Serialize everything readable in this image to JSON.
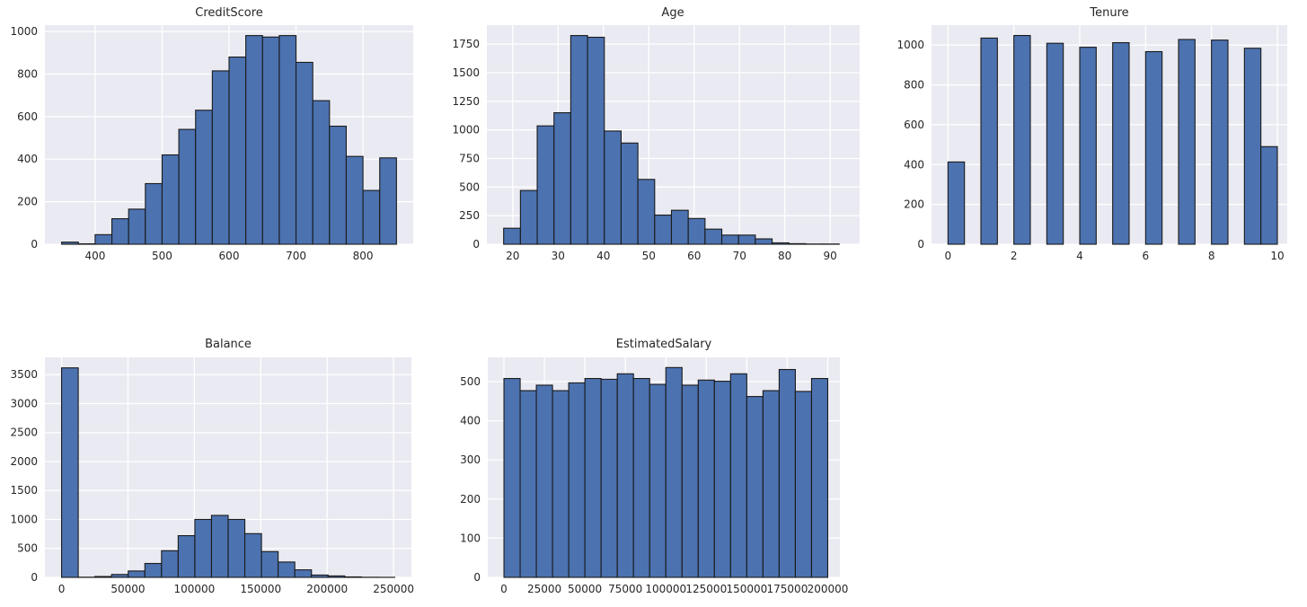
{
  "figure": {
    "background": "#ffffff",
    "plot_background": "#eaeaf2",
    "grid_color": "#ffffff",
    "bar_fill": "#4c72b0",
    "bar_edge": "#1a1a1a",
    "text_color": "#262626"
  },
  "chart_data": [
    {
      "type": "bar",
      "subtype": "histogram",
      "title": "CreditScore",
      "bin_edges": [
        350,
        375,
        400,
        425,
        450,
        475,
        500,
        525,
        550,
        575,
        600,
        625,
        650,
        675,
        700,
        725,
        750,
        775,
        800,
        825,
        850
      ],
      "counts": [
        10,
        2,
        45,
        120,
        165,
        285,
        420,
        540,
        630,
        815,
        880,
        981,
        974,
        981,
        855,
        675,
        555,
        413,
        253,
        406
      ],
      "xlim": [
        325,
        875
      ],
      "ylim": [
        0,
        1030
      ],
      "xticks": [
        400,
        500,
        600,
        700,
        800
      ],
      "yticks": [
        0,
        200,
        400,
        600,
        800,
        1000
      ],
      "grid": true,
      "legend": false
    },
    {
      "type": "bar",
      "subtype": "histogram",
      "title": "Age",
      "bin_edges": [
        18,
        21.7,
        25.4,
        29.1,
        32.8,
        36.5,
        40.2,
        43.9,
        47.6,
        51.3,
        55,
        58.7,
        62.4,
        66.1,
        69.8,
        73.5,
        77.2,
        80.9,
        84.6,
        88.3,
        92
      ],
      "counts": [
        140,
        470,
        1035,
        1150,
        1825,
        1810,
        990,
        885,
        567,
        255,
        297,
        225,
        132,
        80,
        80,
        47,
        12,
        5,
        2,
        2
      ],
      "xlim": [
        14.3,
        96.5
      ],
      "ylim": [
        0,
        1916
      ],
      "xticks": [
        20,
        30,
        40,
        50,
        60,
        70,
        80,
        90
      ],
      "yticks": [
        0,
        250,
        500,
        750,
        1000,
        1250,
        1500,
        1750
      ],
      "grid": true,
      "legend": false
    },
    {
      "type": "bar",
      "subtype": "histogram",
      "title": "Tenure",
      "bars": [
        {
          "x0": 0,
          "x1": 0.5,
          "count": 413
        },
        {
          "x0": 1,
          "x1": 1.5,
          "count": 1035
        },
        {
          "x0": 2,
          "x1": 2.5,
          "count": 1048
        },
        {
          "x0": 3,
          "x1": 3.5,
          "count": 1009
        },
        {
          "x0": 4,
          "x1": 4.5,
          "count": 989
        },
        {
          "x0": 5,
          "x1": 5.5,
          "count": 1012
        },
        {
          "x0": 6,
          "x1": 6.5,
          "count": 967
        },
        {
          "x0": 7,
          "x1": 7.5,
          "count": 1028
        },
        {
          "x0": 8,
          "x1": 8.5,
          "count": 1025
        },
        {
          "x0": 9,
          "x1": 9.5,
          "count": 984
        },
        {
          "x0": 9.5,
          "x1": 10,
          "count": 490
        }
      ],
      "xlim": [
        -0.5,
        10.3
      ],
      "ylim": [
        0,
        1100
      ],
      "xticks": [
        0,
        2,
        4,
        6,
        8,
        10
      ],
      "yticks": [
        0,
        200,
        400,
        600,
        800,
        1000
      ],
      "grid": true,
      "legend": false
    },
    {
      "type": "bar",
      "subtype": "histogram",
      "title": "Balance",
      "bin_edges": [
        0,
        12545,
        25090,
        37635,
        50180,
        62725,
        75269,
        87814,
        100359,
        112904,
        125449,
        137994,
        150539,
        163084,
        175629,
        188174,
        200718,
        213263,
        225808,
        238353,
        250898
      ],
      "counts": [
        3617,
        3,
        15,
        50,
        110,
        240,
        460,
        720,
        1000,
        1070,
        1000,
        755,
        445,
        265,
        130,
        40,
        25,
        8,
        2,
        1
      ],
      "xlim": [
        -12545,
        263443
      ],
      "ylim": [
        0,
        3798
      ],
      "xticks": [
        0,
        50000,
        100000,
        150000,
        200000,
        250000
      ],
      "yticks": [
        0,
        500,
        1000,
        1500,
        2000,
        2500,
        3000,
        3500
      ],
      "grid": true,
      "legend": false
    },
    {
      "type": "bar",
      "subtype": "histogram",
      "title": "EstimatedSalary",
      "bin_edges": [
        12,
        10011,
        20010,
        30009,
        40008,
        50007,
        60006,
        70005,
        80004,
        90003,
        100002,
        110001,
        120000,
        129999,
        139998,
        149997,
        159996,
        169995,
        179994,
        189993,
        199992
      ],
      "counts": [
        508,
        477,
        491,
        477,
        497,
        508,
        506,
        520,
        508,
        493,
        536,
        491,
        504,
        501,
        520,
        462,
        477,
        531,
        475,
        508
      ],
      "xlim": [
        -9990,
        207500
      ],
      "ylim": [
        0,
        562
      ],
      "xticks": [
        0,
        25000,
        50000,
        75000,
        100000,
        125000,
        150000,
        175000,
        200000
      ],
      "yticks": [
        0,
        100,
        200,
        300,
        400,
        500
      ],
      "grid": true,
      "legend": false
    }
  ]
}
